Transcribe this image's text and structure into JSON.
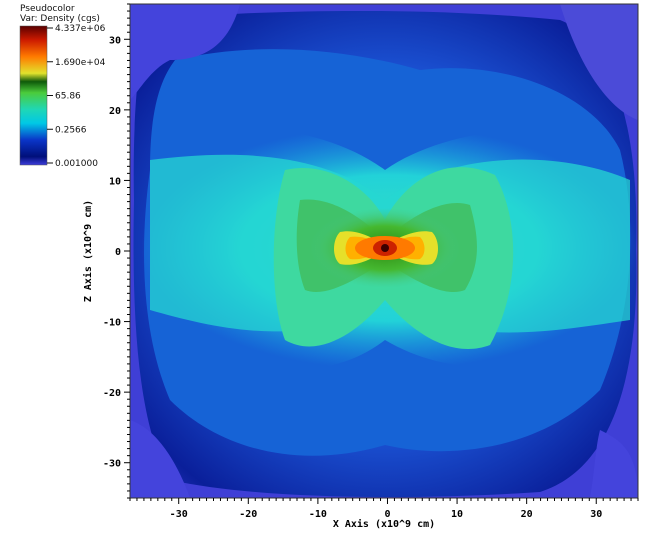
{
  "chart_data": {
    "type": "heatmap",
    "plot_kind": "Pseudocolor",
    "variable_label": "Var: Density (cgs)",
    "colormap": [
      "#3d3ddb",
      "#000f7a",
      "#0a35c8",
      "#00c8e6",
      "#1fd7b5",
      "#4bcb3b",
      "#0e5a0a",
      "#e2e22d",
      "#ff7a00",
      "#cc1a00",
      "#5a0000"
    ],
    "legend": {
      "title": "Pseudocolor",
      "subtitle": "Var: Density (cgs)",
      "labels": [
        "4.337e+06",
        "1.690e+04",
        "65.86",
        "0.2566",
        "0.001000"
      ],
      "values": [
        4337000,
        16900,
        65.86,
        0.2566,
        0.001
      ],
      "scale": "log"
    },
    "xlabel": "X Axis (x10^9 cm)",
    "ylabel": "Z Axis (x10^9 cm)",
    "xlim": [
      -37,
      36
    ],
    "ylim": [
      -35,
      35
    ],
    "xticks": [
      -30,
      -20,
      -10,
      0,
      10,
      20,
      30
    ],
    "yticks": [
      -30,
      -20,
      -10,
      0,
      10,
      20,
      30
    ],
    "peak_density_location": [
      0,
      0
    ]
  }
}
